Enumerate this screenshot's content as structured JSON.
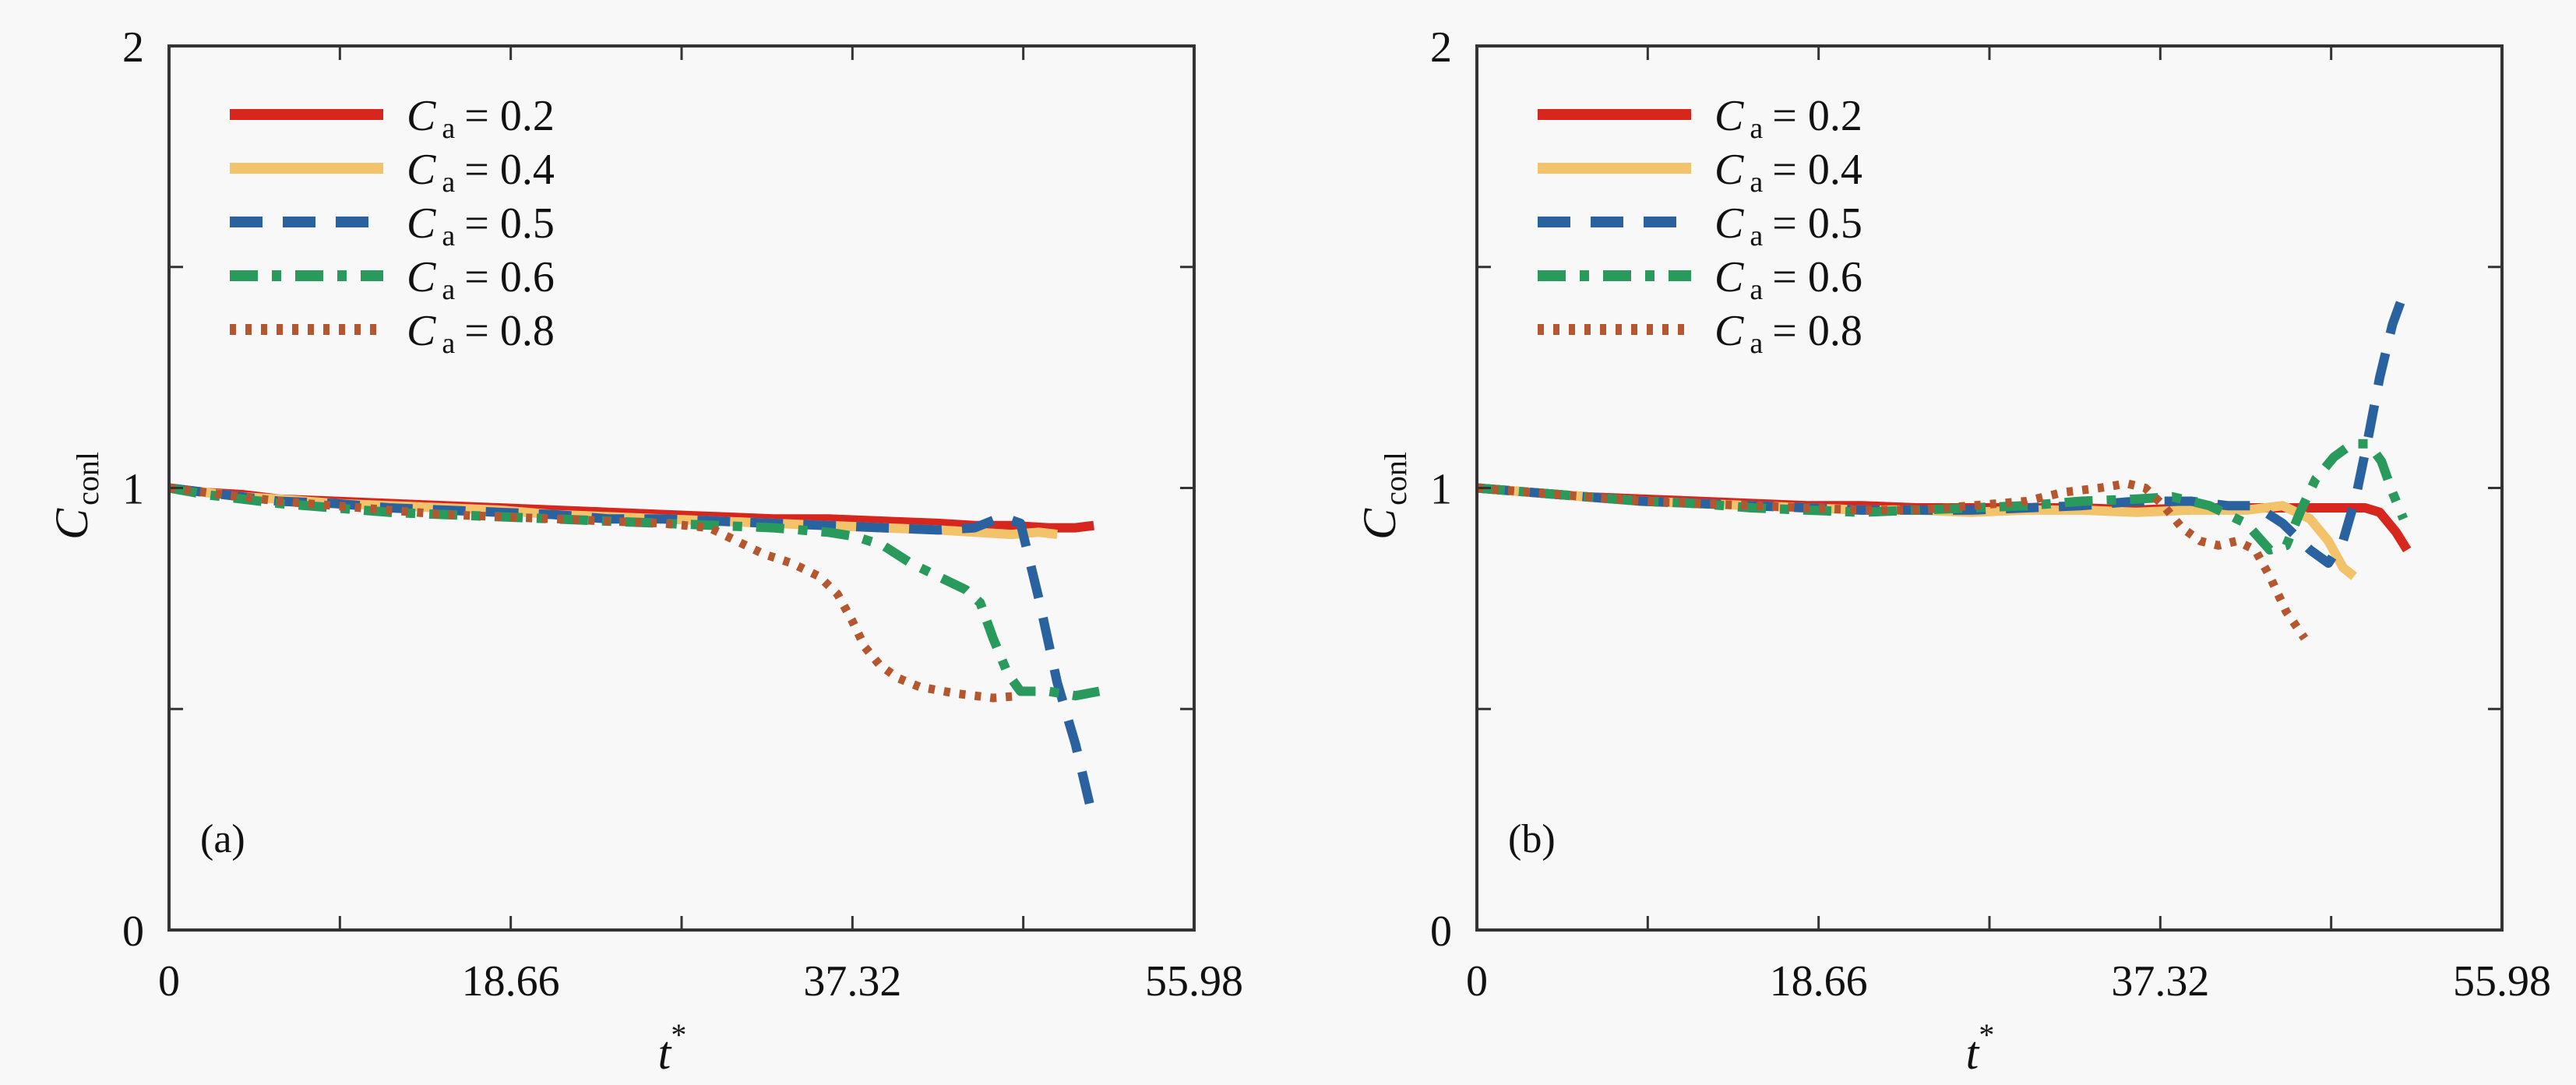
{
  "chart_data": [
    {
      "type": "line",
      "panel_label": "(a)",
      "xlabel": "t",
      "xlabel_superscript": "*",
      "ylabel": "C",
      "ylabel_subscript": "conl",
      "xlim": [
        0,
        55.98
      ],
      "ylim": [
        0,
        2
      ],
      "xticks": [
        0,
        9.33,
        18.66,
        27.99,
        37.32,
        46.65,
        55.98
      ],
      "xtick_labels": [
        "0",
        "",
        "18.66",
        "",
        "37.32",
        "",
        "55.98"
      ],
      "yticks": [
        0,
        0.5,
        1,
        1.5,
        2
      ],
      "ytick_labels": [
        "0",
        "",
        "1",
        "",
        "2"
      ],
      "grid": false,
      "legend_position": "top-left",
      "series": [
        {
          "name": "Ca = 0.2",
          "label_main": "C",
          "label_sub": "a",
          "label_value": "= 0.2",
          "color": "#d7261e",
          "style": "solid",
          "x": [
            0,
            2,
            4,
            6,
            9,
            12,
            15,
            18,
            21,
            24,
            27,
            30,
            33,
            36,
            39,
            42,
            44,
            46,
            48,
            49.5,
            50.5
          ],
          "y": [
            1.0,
            0.99,
            0.985,
            0.975,
            0.97,
            0.965,
            0.96,
            0.955,
            0.95,
            0.945,
            0.94,
            0.935,
            0.93,
            0.93,
            0.925,
            0.92,
            0.915,
            0.915,
            0.91,
            0.91,
            0.915
          ]
        },
        {
          "name": "Ca = 0.4",
          "label_main": "C",
          "label_sub": "a",
          "label_value": "= 0.4",
          "color": "#f2c36b",
          "style": "solid",
          "x": [
            0,
            2,
            4,
            6,
            9,
            12,
            15,
            18,
            21,
            24,
            27,
            30,
            33,
            36,
            39,
            42,
            44,
            46,
            47.5,
            48.5
          ],
          "y": [
            1.0,
            0.99,
            0.98,
            0.975,
            0.965,
            0.96,
            0.955,
            0.95,
            0.94,
            0.935,
            0.93,
            0.925,
            0.92,
            0.915,
            0.91,
            0.905,
            0.9,
            0.895,
            0.9,
            0.895
          ]
        },
        {
          "name": "Ca = 0.5",
          "label_main": "C",
          "label_sub": "a",
          "label_value": "= 0.5",
          "color": "#2a62a0",
          "style": "dashed",
          "x": [
            0,
            2,
            4,
            6,
            9,
            12,
            15,
            18,
            21,
            24,
            27,
            30,
            33,
            36,
            39,
            42,
            44,
            45.5,
            46.5,
            47.5,
            48.5,
            49.5,
            50.3
          ],
          "y": [
            1.0,
            0.99,
            0.98,
            0.97,
            0.965,
            0.955,
            0.95,
            0.945,
            0.94,
            0.93,
            0.93,
            0.925,
            0.92,
            0.915,
            0.91,
            0.905,
            0.91,
            0.935,
            0.92,
            0.75,
            0.56,
            0.42,
            0.28
          ]
        },
        {
          "name": "Ca = 0.6",
          "label_main": "C",
          "label_sub": "a",
          "label_value": "= 0.6",
          "color": "#2a9a5c",
          "style": "dashdot",
          "x": [
            0,
            2,
            4,
            6,
            9,
            12,
            15,
            18,
            21,
            24,
            27,
            30,
            33,
            36,
            37.5,
            39,
            40.5,
            42,
            43.5,
            44.3,
            45,
            45.8,
            46.5,
            48,
            49.5,
            50.8
          ],
          "y": [
            1.0,
            0.985,
            0.975,
            0.965,
            0.955,
            0.945,
            0.94,
            0.935,
            0.93,
            0.925,
            0.92,
            0.915,
            0.91,
            0.9,
            0.89,
            0.87,
            0.83,
            0.8,
            0.77,
            0.74,
            0.66,
            0.58,
            0.54,
            0.54,
            0.53,
            0.54
          ]
        },
        {
          "name": "Ca = 0.8",
          "label_main": "C",
          "label_sub": "a",
          "label_value": "= 0.8",
          "color": "#b5562e",
          "style": "dotted",
          "x": [
            0,
            2,
            4,
            6,
            9,
            12,
            15,
            18,
            21,
            24,
            27,
            29.5,
            31,
            32.5,
            34,
            35.5,
            36.5,
            37.3,
            38,
            38.8,
            39.8,
            41,
            43,
            45,
            46.5
          ],
          "y": [
            1.0,
            0.99,
            0.98,
            0.97,
            0.96,
            0.95,
            0.94,
            0.935,
            0.93,
            0.925,
            0.92,
            0.91,
            0.88,
            0.85,
            0.83,
            0.8,
            0.76,
            0.7,
            0.64,
            0.6,
            0.57,
            0.55,
            0.535,
            0.525,
            0.53
          ]
        }
      ]
    },
    {
      "type": "line",
      "panel_label": "(b)",
      "xlabel": "t",
      "xlabel_superscript": "*",
      "ylabel": "C",
      "ylabel_subscript": "conl",
      "xlim": [
        0,
        55.98
      ],
      "ylim": [
        0,
        2
      ],
      "xticks": [
        0,
        9.33,
        18.66,
        27.99,
        37.32,
        46.65,
        55.98
      ],
      "xtick_labels": [
        "0",
        "",
        "18.66",
        "",
        "37.32",
        "",
        "55.98"
      ],
      "yticks": [
        0,
        0.5,
        1,
        1.5,
        2
      ],
      "ytick_labels": [
        "0",
        "",
        "1",
        "",
        "2"
      ],
      "grid": false,
      "legend_position": "top-left",
      "series": [
        {
          "name": "Ca = 0.2",
          "label_main": "C",
          "label_sub": "a",
          "label_value": "= 0.2",
          "color": "#d7261e",
          "style": "solid",
          "x": [
            0,
            3,
            6,
            9,
            12,
            15,
            18,
            21,
            24,
            27,
            30,
            33,
            36,
            39,
            42,
            45,
            47,
            48.5,
            49.3,
            50.2,
            50.8
          ],
          "y": [
            1.0,
            0.99,
            0.98,
            0.975,
            0.97,
            0.965,
            0.96,
            0.96,
            0.955,
            0.955,
            0.955,
            0.955,
            0.95,
            0.955,
            0.955,
            0.955,
            0.955,
            0.955,
            0.945,
            0.9,
            0.86
          ]
        },
        {
          "name": "Ca = 0.4",
          "label_main": "C",
          "label_sub": "a",
          "label_value": "= 0.4",
          "color": "#f2c36b",
          "style": "solid",
          "x": [
            0,
            3,
            6,
            9,
            12,
            15,
            18,
            21,
            24,
            27,
            30,
            33,
            36,
            39,
            42,
            44,
            45.5,
            46.5,
            47.3,
            47.9
          ],
          "y": [
            1.0,
            0.99,
            0.98,
            0.97,
            0.965,
            0.96,
            0.955,
            0.95,
            0.95,
            0.945,
            0.95,
            0.95,
            0.945,
            0.95,
            0.95,
            0.96,
            0.93,
            0.88,
            0.82,
            0.8
          ]
        },
        {
          "name": "Ca = 0.5",
          "label_main": "C",
          "label_sub": "a",
          "label_value": "= 0.5",
          "color": "#2a62a0",
          "style": "dashed",
          "x": [
            0,
            3,
            6,
            9,
            12,
            15,
            18,
            21,
            24,
            27,
            30,
            33,
            36,
            39,
            41,
            42.5,
            44,
            45.5,
            46.5,
            47.3,
            48,
            48.7,
            49.3,
            50,
            50.7
          ],
          "y": [
            1.0,
            0.99,
            0.98,
            0.97,
            0.965,
            0.96,
            0.955,
            0.95,
            0.95,
            0.95,
            0.955,
            0.96,
            0.97,
            0.97,
            0.96,
            0.96,
            0.92,
            0.86,
            0.83,
            0.88,
            0.98,
            1.12,
            1.25,
            1.37,
            1.45
          ]
        },
        {
          "name": "Ca = 0.6",
          "label_main": "C",
          "label_sub": "a",
          "label_value": "= 0.6",
          "color": "#2a9a5c",
          "style": "dashdot",
          "x": [
            0,
            3,
            6,
            9,
            12,
            15,
            18,
            21,
            24,
            27,
            30,
            33,
            36,
            38,
            40,
            42,
            43.3,
            44.2,
            45,
            45.8,
            46.8,
            47.8,
            48.7,
            49.4,
            50,
            50.6
          ],
          "y": [
            1.0,
            0.99,
            0.98,
            0.97,
            0.965,
            0.955,
            0.95,
            0.945,
            0.95,
            0.955,
            0.96,
            0.97,
            0.975,
            0.98,
            0.96,
            0.92,
            0.86,
            0.87,
            0.95,
            1.02,
            1.07,
            1.1,
            1.1,
            1.06,
            0.99,
            0.93
          ]
        },
        {
          "name": "Ca = 0.8",
          "label_main": "C",
          "label_sub": "a",
          "label_value": "= 0.8",
          "color": "#b5562e",
          "style": "dotted",
          "x": [
            0,
            3,
            6,
            9,
            12,
            15,
            18,
            21,
            24,
            27,
            30,
            32,
            34,
            35.5,
            36.5,
            37.5,
            38.5,
            39.5,
            40.5,
            41.5,
            42.5,
            43.3,
            44.2,
            45.2
          ],
          "y": [
            1.0,
            0.99,
            0.98,
            0.97,
            0.965,
            0.96,
            0.955,
            0.95,
            0.95,
            0.96,
            0.97,
            0.99,
            1.0,
            1.01,
            1.0,
            0.96,
            0.91,
            0.88,
            0.87,
            0.88,
            0.86,
            0.8,
            0.72,
            0.66
          ]
        }
      ]
    }
  ]
}
